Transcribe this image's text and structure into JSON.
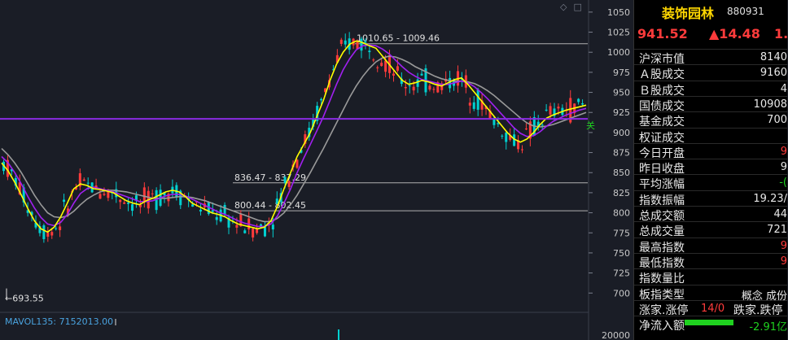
{
  "header": {
    "icons": [
      "diamond-icon",
      "square-icon"
    ]
  },
  "chart_data": {
    "type": "candlestick",
    "ylim": [
      680,
      1060
    ],
    "y_ticks": [
      "1050",
      "1025",
      "1000",
      "975",
      "950",
      "925",
      "900",
      "875",
      "850",
      "825",
      "800",
      "775",
      "750",
      "725",
      "700"
    ],
    "volume_tick": "20000",
    "horizontal_line": 917,
    "price_levels": [
      {
        "label": "1010.65 - 1009.46",
        "value": 1010.65
      },
      {
        "label": "836.47 - 837.29",
        "value": 837.29
      },
      {
        "label": "800.44 - 802.45",
        "value": 802.45
      }
    ],
    "low_label": "693.55",
    "low_value": 693.55,
    "right_marker": "关",
    "ma5": [
      862,
      852,
      838,
      822,
      805,
      790,
      780,
      776,
      782,
      795,
      812,
      830,
      836,
      834,
      830,
      829,
      827,
      825,
      820,
      815,
      812,
      810,
      815,
      818,
      822,
      826,
      828,
      826,
      820,
      812,
      808,
      804,
      800,
      798,
      795,
      790,
      786,
      784,
      782,
      780,
      782,
      790,
      808,
      830,
      850,
      870,
      885,
      900,
      920,
      940,
      965,
      985,
      1000,
      1010,
      1014,
      1012,
      1008,
      1005,
      995,
      985,
      975,
      965,
      960,
      962,
      965,
      963,
      960,
      958,
      962,
      966,
      968,
      960,
      950,
      940,
      930,
      920,
      910,
      900,
      892,
      888,
      892,
      900,
      910,
      918,
      922,
      925,
      928,
      930,
      932,
      934
    ],
    "ma10": [
      870,
      862,
      850,
      836,
      820,
      806,
      794,
      786,
      784,
      788,
      798,
      812,
      824,
      830,
      832,
      830,
      828,
      826,
      823,
      820,
      817,
      814,
      814,
      815,
      818,
      821,
      823,
      823,
      821,
      817,
      813,
      809,
      805,
      801,
      798,
      794,
      790,
      787,
      785,
      783,
      783,
      786,
      796,
      812,
      830,
      850,
      868,
      885,
      902,
      920,
      940,
      960,
      978,
      992,
      1003,
      1008,
      1009,
      1008,
      1004,
      998,
      990,
      982,
      975,
      970,
      966,
      964,
      962,
      960,
      960,
      962,
      964,
      962,
      957,
      950,
      942,
      933,
      924,
      915,
      906,
      899,
      895,
      896,
      901,
      908,
      914,
      918,
      922,
      925,
      928,
      930
    ],
    "ma20": [
      880,
      872,
      862,
      850,
      836,
      822,
      810,
      800,
      795,
      794,
      796,
      802,
      810,
      817,
      822,
      826,
      828,
      828,
      827,
      826,
      824,
      822,
      820,
      818,
      818,
      818,
      819,
      820,
      820,
      819,
      817,
      815,
      812,
      809,
      806,
      803,
      800,
      797,
      794,
      791,
      789,
      789,
      793,
      800,
      810,
      822,
      836,
      850,
      865,
      880,
      896,
      912,
      928,
      944,
      958,
      970,
      980,
      988,
      993,
      995,
      994,
      991,
      987,
      982,
      978,
      974,
      970,
      967,
      965,
      964,
      964,
      963,
      961,
      957,
      952,
      946,
      939,
      932,
      925,
      918,
      912,
      908,
      907,
      908,
      910,
      913,
      916,
      919,
      922,
      925
    ]
  },
  "mavol": {
    "label": "MAVOL135: 7152013.00"
  },
  "panel": {
    "name": "装饰园林",
    "code": "880931",
    "price": "941.52",
    "change": "▲14.48",
    "pct": "1.",
    "rows": [
      {
        "label": "沪深市值",
        "value": "8140",
        "color": "white"
      },
      {
        "label": "Ａ股成交",
        "value": "9160",
        "color": "white"
      },
      {
        "label": "Ｂ股成交",
        "value": "4",
        "color": "white"
      },
      {
        "label": "国债成交",
        "value": "10908",
        "color": "white"
      },
      {
        "label": "基金成交",
        "value": "700",
        "color": "white"
      },
      {
        "label": "权证成交",
        "value": "",
        "color": "white"
      },
      {
        "label": "今日开盘",
        "value": "9",
        "color": "red"
      },
      {
        "label": "昨日收盘",
        "value": "9",
        "color": "white"
      },
      {
        "label": "平均涨幅",
        "value": "-(",
        "color": "green"
      },
      {
        "label": "指数振幅",
        "value": "19.23/",
        "color": "white"
      },
      {
        "label": "总成交额",
        "value": "44",
        "color": "white"
      },
      {
        "label": "总成交量",
        "value": "721",
        "color": "white"
      },
      {
        "label": "最高指数",
        "value": "9",
        "color": "red"
      },
      {
        "label": "最低指数",
        "value": "9",
        "color": "red"
      },
      {
        "label": "指数量比",
        "value": "",
        "color": "white"
      }
    ],
    "type_row": {
      "label": "板指类型",
      "value": "概念 成份"
    },
    "updown_row": {
      "label": "涨家.涨停",
      "value": "14/0",
      "right": "跌家.跌停"
    },
    "netflow_row": {
      "label": "净流入额",
      "value": "-2.91亿"
    }
  }
}
